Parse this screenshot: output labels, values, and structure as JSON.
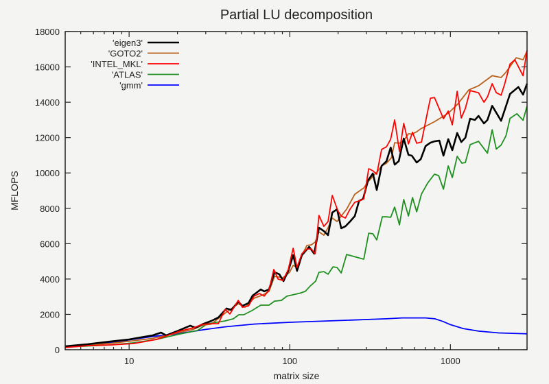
{
  "chart_data": {
    "type": "line",
    "title": "Partial LU decomposition",
    "xlabel": "matrix size",
    "ylabel": "MFLOPS",
    "xscale": "log",
    "xlim": [
      4,
      3000
    ],
    "ylim": [
      0,
      18000
    ],
    "xticks": [
      10,
      100,
      1000
    ],
    "xtick_labels": [
      "10",
      "100",
      "1000"
    ],
    "yticks": [
      0,
      2000,
      4000,
      6000,
      8000,
      10000,
      12000,
      14000,
      16000,
      18000
    ],
    "ytick_labels": [
      "0",
      "2000",
      "4000",
      "6000",
      "8000",
      "10000",
      "12000",
      "14000",
      "16000",
      "18000"
    ],
    "grid": false,
    "legend_position": "top-left",
    "series": [
      {
        "name": "'eigen3'",
        "color": "#000000",
        "x": [
          4,
          5.5,
          7.7,
          10,
          11.8,
          14,
          15.8,
          17,
          19.9,
          24,
          25.9,
          28.6,
          32.5,
          35.9,
          40.4,
          43.3,
          47.8,
          50.7,
          55.4,
          58.7,
          66,
          69.3,
          74.3,
          80.4,
          86.1,
          91.4,
          97.9,
          105,
          111,
          119,
          132,
          142,
          152,
          163,
          173,
          184,
          197,
          209,
          222,
          237,
          254,
          270,
          286,
          307,
          329,
          348,
          373,
          400,
          425,
          450,
          477,
          512,
          548,
          575,
          617,
          654,
          701,
          751,
          796,
          853,
          905,
          970,
          1028,
          1102,
          1169,
          1239,
          1327,
          1422,
          1496,
          1618,
          1700,
          1820,
          2069,
          2350,
          2649,
          2834,
          3000
        ],
        "y": [
          190,
          310,
          470,
          580,
          700,
          810,
          970,
          810,
          1050,
          1360,
          1240,
          1440,
          1630,
          1820,
          2330,
          2250,
          2720,
          2480,
          2640,
          3060,
          3410,
          3300,
          3410,
          4380,
          4270,
          3880,
          4460,
          5350,
          4460,
          5350,
          5820,
          5430,
          6900,
          6710,
          6480,
          7760,
          7950,
          6870,
          6980,
          7250,
          7560,
          8420,
          8530,
          9580,
          9970,
          9040,
          10400,
          10670,
          11440,
          10470,
          10670,
          11950,
          11020,
          10980,
          10590,
          10780,
          11520,
          11710,
          11790,
          11830,
          10980,
          11910,
          11290,
          12260,
          11750,
          11990,
          13070,
          13000,
          13230,
          12800,
          13000,
          13800,
          12950,
          14470,
          14860,
          14430,
          15050
        ]
      },
      {
        "name": "'GOTO2'",
        "color": "#b8601a",
        "x": [
          4,
          5.5,
          7.7,
          10,
          14,
          20,
          25,
          28.6,
          32.5,
          40.4,
          47.8,
          52.7,
          59.8,
          68,
          74.3,
          80.4,
          90.6,
          99.8,
          105,
          111,
          119,
          128,
          136,
          144,
          152,
          163,
          173,
          184,
          197,
          209,
          226,
          254,
          289,
          307,
          329,
          352,
          373,
          400,
          429,
          450,
          482,
          512,
          548,
          575,
          617,
          654,
          796,
          970,
          1112,
          1303,
          1496,
          1820,
          2069,
          2218,
          2570,
          2834,
          3000
        ],
        "y": [
          150,
          260,
          360,
          480,
          640,
          950,
          1150,
          1380,
          1450,
          2130,
          2600,
          2400,
          2910,
          3100,
          3300,
          4150,
          4070,
          4380,
          4770,
          4650,
          5350,
          5900,
          5930,
          6090,
          6670,
          6480,
          6900,
          7450,
          7250,
          7560,
          7950,
          8800,
          9150,
          9500,
          9810,
          10090,
          10400,
          10550,
          10860,
          11710,
          11680,
          11830,
          12220,
          12200,
          12330,
          12500,
          12900,
          13380,
          13900,
          14700,
          14930,
          15500,
          15400,
          15700,
          16520,
          16400,
          16900
        ]
      },
      {
        "name": "'INTEL_MKL'",
        "color": "#ff0000",
        "x": [
          4,
          5.5,
          7.7,
          10.7,
          14.8,
          20.7,
          25.2,
          28.6,
          32.5,
          35.9,
          39.6,
          42.4,
          47.8,
          50.7,
          55.4,
          59.8,
          64.7,
          69.3,
          74.3,
          79.6,
          84.5,
          90.6,
          97.9,
          105,
          111,
          119,
          128,
          136,
          144,
          152,
          163,
          173,
          184,
          199,
          209,
          222,
          237,
          254,
          270,
          289,
          310,
          329,
          348,
          373,
          400,
          425,
          450,
          482,
          512,
          521,
          548,
          581,
          617,
          661,
          715,
          751,
          796,
          905,
          970,
          1028,
          1102,
          1169,
          1239,
          1327,
          1496,
          1618,
          1700,
          1820,
          1931,
          2069,
          2173,
          2350,
          2518,
          2834,
          3000
        ],
        "y": [
          120,
          230,
          270,
          350,
          580,
          1050,
          1240,
          1440,
          1470,
          1470,
          2290,
          2020,
          2790,
          2400,
          2480,
          3030,
          3180,
          3030,
          3370,
          4540,
          4000,
          3920,
          4540,
          5740,
          4650,
          5430,
          5700,
          5700,
          5430,
          7600,
          6980,
          7250,
          8730,
          7870,
          7560,
          7450,
          7950,
          8340,
          8420,
          8530,
          10240,
          10120,
          9930,
          11330,
          11480,
          11910,
          13000,
          11210,
          12800,
          12530,
          11640,
          12300,
          11680,
          11750,
          13300,
          14230,
          14270,
          13070,
          13500,
          12720,
          14620,
          13110,
          13650,
          14660,
          14540,
          14000,
          14300,
          15050,
          14540,
          14400,
          15000,
          16160,
          16400,
          15500,
          16950
        ]
      },
      {
        "name": "'ATLAS'",
        "color": "#1f8f1f",
        "x": [
          4,
          7.7,
          10.7,
          14.8,
          20.7,
          26.7,
          30.7,
          39.6,
          44.6,
          48.2,
          51.7,
          58.1,
          66,
          74.3,
          80.4,
          88.7,
          96,
          108,
          116,
          125,
          134,
          145,
          152,
          163,
          173,
          186,
          197,
          209,
          226,
          289,
          310,
          329,
          348,
          377,
          400,
          425,
          450,
          482,
          512,
          548,
          581,
          617,
          661,
          722,
          796,
          845,
          905,
          970,
          1028,
          1102,
          1180,
          1239,
          1327,
          1422,
          1496,
          1700,
          1820,
          1931,
          2069,
          2218,
          2350,
          2594,
          2834,
          3000
        ],
        "y": [
          150,
          270,
          390,
          580,
          890,
          1090,
          1470,
          1630,
          1750,
          1980,
          1980,
          2210,
          2520,
          2520,
          2750,
          2790,
          3030,
          3140,
          3200,
          3300,
          3600,
          3880,
          4380,
          4420,
          4270,
          4690,
          4650,
          4340,
          5390,
          5120,
          6590,
          6560,
          6210,
          7520,
          7520,
          7490,
          8070,
          7060,
          8500,
          7560,
          8610,
          7800,
          8810,
          9430,
          9930,
          9850,
          9080,
          10400,
          9740,
          10940,
          10550,
          10590,
          11600,
          11710,
          11790,
          11120,
          12440,
          11350,
          11580,
          12100,
          13090,
          13350,
          12980,
          13780
        ]
      },
      {
        "name": "'gmm'",
        "color": "#0000ff",
        "x": [
          4,
          6,
          8,
          10,
          14,
          20,
          30,
          40,
          60,
          100,
          200,
          400,
          500,
          700,
          800,
          900,
          1000,
          1200,
          1500,
          2000,
          3000
        ],
        "y": [
          200,
          300,
          420,
          560,
          750,
          900,
          1150,
          1300,
          1450,
          1550,
          1650,
          1750,
          1800,
          1800,
          1750,
          1600,
          1420,
          1200,
          1050,
          950,
          900
        ]
      }
    ]
  }
}
